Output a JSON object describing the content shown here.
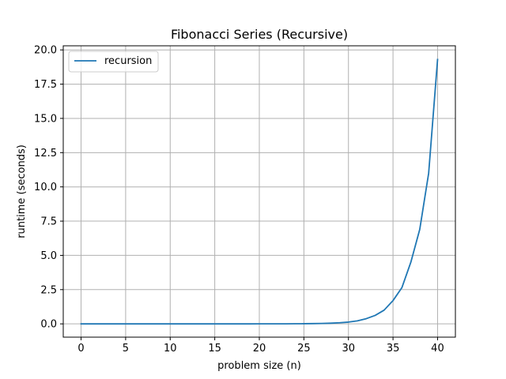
{
  "chart_data": {
    "type": "line",
    "title": "Fibonacci Series (Recursive)",
    "xlabel": "problem size (n)",
    "ylabel": "runtime (seconds)",
    "xlim": [
      -2,
      42
    ],
    "ylim": [
      -0.97,
      20.3
    ],
    "xticks": [
      0,
      5,
      10,
      15,
      20,
      25,
      30,
      35,
      40
    ],
    "xtick_labels": [
      "0",
      "5",
      "10",
      "15",
      "20",
      "25",
      "30",
      "35",
      "40"
    ],
    "yticks": [
      0,
      2.5,
      5,
      7.5,
      10,
      12.5,
      15,
      17.5,
      20
    ],
    "ytick_labels": [
      "0.0",
      "2.5",
      "5.0",
      "7.5",
      "10.0",
      "12.5",
      "15.0",
      "17.5",
      "20.0"
    ],
    "grid": true,
    "legend_position": "top-left",
    "series": [
      {
        "name": "recursion",
        "color": "#1f77b4",
        "x": [
          0,
          1,
          2,
          3,
          4,
          5,
          6,
          7,
          8,
          9,
          10,
          11,
          12,
          13,
          14,
          15,
          16,
          17,
          18,
          19,
          20,
          21,
          22,
          23,
          24,
          25,
          26,
          27,
          28,
          29,
          30,
          31,
          32,
          33,
          34,
          35,
          36,
          37,
          38,
          39,
          40
        ],
        "values": [
          0,
          0,
          0,
          0,
          0,
          0,
          0,
          0,
          0,
          0,
          0,
          0,
          0,
          0,
          0,
          0,
          0,
          0,
          0,
          0,
          0.001,
          0.002,
          0.003,
          0.005,
          0.008,
          0.012,
          0.02,
          0.03,
          0.05,
          0.08,
          0.13,
          0.22,
          0.38,
          0.62,
          1.0,
          1.7,
          2.65,
          4.5,
          6.9,
          11.0,
          19.3
        ]
      }
    ]
  }
}
